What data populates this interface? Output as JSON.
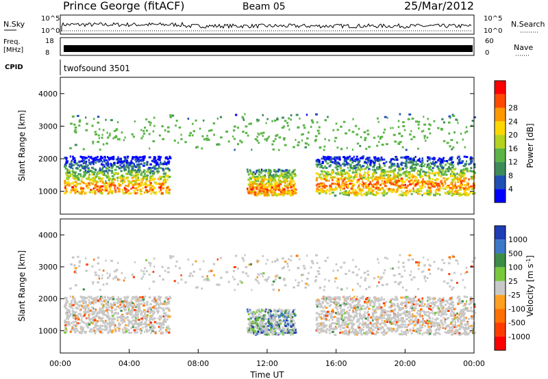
{
  "header": {
    "station": "Prince George (fitACF)",
    "beam": "Beam 05",
    "date": "25/Mar/2012"
  },
  "top_panels": {
    "nsky": {
      "left_label": "N.Sky",
      "ticks": [
        "10^5",
        "10^0"
      ],
      "right_label": "N.Search",
      "right_ticks": [
        "10^5",
        "10^0"
      ]
    },
    "freq": {
      "left_label_1": "Freq.",
      "left_label_2": "[MHz]",
      "ticks": [
        "18",
        "8"
      ],
      "right_label": "Nave",
      "right_ticks": [
        "60",
        "0"
      ]
    },
    "cpid": {
      "left_label": "CPID",
      "program": "twofsound 3501"
    }
  },
  "colors": {
    "power_scale": [
      "#0000ff",
      "#1e50b4",
      "#3c8c5a",
      "#5ab446",
      "#b4d21e",
      "#ffd700",
      "#ff9900",
      "#ff4a00",
      "#ff0000"
    ],
    "velocity_scale": [
      "#1e3cb4",
      "#3c78c8",
      "#3c8c46",
      "#78c83c",
      "#c8c8c8",
      "#ffa020",
      "#ff7000",
      "#ff3c00",
      "#ff0000"
    ]
  },
  "chart_data": [
    {
      "type": "heatmap",
      "name": "power",
      "xlabel": "",
      "ylabel": "Slant Range [km]",
      "yticks": [
        "1000",
        "2000",
        "3000",
        "4000"
      ],
      "ylim": [
        300,
        4500
      ],
      "xlim": [
        "00:00",
        "24:00"
      ],
      "colorbar": {
        "label": "Power [dB]",
        "ticks": [
          "4",
          "8",
          "12",
          "16",
          "20",
          "24",
          "28"
        ]
      },
      "scatter_bands": [
        {
          "x": [
            "00:00",
            "06:30"
          ],
          "y": [
            900,
            2000
          ],
          "level": "moderate-high"
        },
        {
          "x": [
            "11:00",
            "13:30"
          ],
          "y": [
            900,
            1700
          ],
          "level": "high"
        },
        {
          "x": [
            "15:00",
            "24:00"
          ],
          "y": [
            900,
            2000
          ],
          "level": "moderate-high"
        }
      ]
    },
    {
      "type": "heatmap",
      "name": "velocity",
      "xlabel": "Time UT",
      "ylabel": "Slant Range [km]",
      "xticks": [
        "00:00",
        "04:00",
        "08:00",
        "12:00",
        "16:00",
        "20:00",
        "00:00"
      ],
      "yticks": [
        "1000",
        "2000",
        "3000",
        "4000"
      ],
      "ylim": [
        300,
        4500
      ],
      "xlim": [
        "00:00",
        "24:00"
      ],
      "colorbar": {
        "label": "Velocity [m s^-1]",
        "ticks": [
          "1000",
          "500",
          "100",
          "25",
          "-25",
          "-100",
          "-500",
          "-1000"
        ]
      }
    }
  ]
}
